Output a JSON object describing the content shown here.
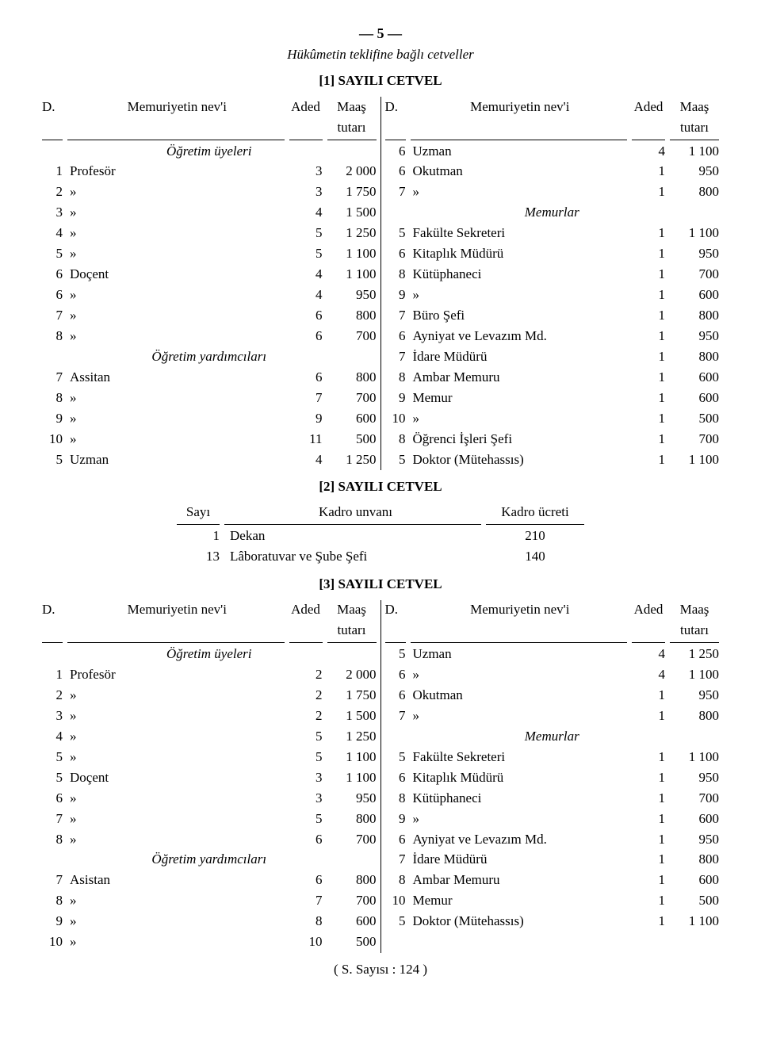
{
  "pageNumber": "— 5 —",
  "headerSubtitle": "Hükûmetin teklifine bağlı cetveller",
  "footer": "( S. Sayısı : 124 )",
  "headers": {
    "d": "D.",
    "nev": "Memuriyetin nev'i",
    "aded": "Aded",
    "maas": "Maaş",
    "tutari": "tutarı"
  },
  "c2headers": {
    "sayi": "Sayı",
    "unvan": "Kadro unvanı",
    "ucret": "Kadro ücreti"
  },
  "cetvel1": {
    "title": "[1] SAYILI CETVEL",
    "left": [
      {
        "section": "Öğretim üyeleri"
      },
      {
        "d": "1",
        "nev": "Profesör",
        "aded": "3",
        "maas": "2 000"
      },
      {
        "d": "2",
        "nev": "»",
        "aded": "3",
        "maas": "1 750"
      },
      {
        "d": "3",
        "nev": "»",
        "aded": "4",
        "maas": "1 500"
      },
      {
        "d": "4",
        "nev": "»",
        "aded": "5",
        "maas": "1 250"
      },
      {
        "d": "5",
        "nev": "»",
        "aded": "5",
        "maas": "1 100"
      },
      {
        "d": "6",
        "nev": "Doçent",
        "aded": "4",
        "maas": "1 100"
      },
      {
        "d": "6",
        "nev": "»",
        "aded": "4",
        "maas": "950"
      },
      {
        "d": "7",
        "nev": "»",
        "aded": "6",
        "maas": "800"
      },
      {
        "d": "8",
        "nev": "»",
        "aded": "6",
        "maas": "700"
      },
      {
        "section": "Öğretim yardımcıları"
      },
      {
        "d": "7",
        "nev": "Assitan",
        "aded": "6",
        "maas": "800"
      },
      {
        "d": "8",
        "nev": "»",
        "aded": "7",
        "maas": "700"
      },
      {
        "d": "9",
        "nev": "»",
        "aded": "9",
        "maas": "600"
      },
      {
        "d": "10",
        "nev": "»",
        "aded": "11",
        "maas": "500"
      },
      {
        "d": "5",
        "nev": "Uzman",
        "aded": "4",
        "maas": "1 250"
      }
    ],
    "right": [
      {
        "d": "6",
        "nev": "Uzman",
        "aded": "4",
        "maas": "1 100"
      },
      {
        "d": "6",
        "nev": "Okutman",
        "aded": "1",
        "maas": "950"
      },
      {
        "d": "7",
        "nev": "»",
        "aded": "1",
        "maas": "800"
      },
      {
        "section": "Memurlar"
      },
      {
        "d": "5",
        "nev": "Fakülte Sekreteri",
        "aded": "1",
        "maas": "1 100"
      },
      {
        "d": "6",
        "nev": "Kitaplık Müdürü",
        "aded": "1",
        "maas": "950"
      },
      {
        "d": "8",
        "nev": "Kütüphaneci",
        "aded": "1",
        "maas": "700"
      },
      {
        "d": "9",
        "nev": "»",
        "aded": "1",
        "maas": "600"
      },
      {
        "d": "7",
        "nev": "Büro Şefi",
        "aded": "1",
        "maas": "800"
      },
      {
        "d": "6",
        "nev": "Ayniyat ve Levazım Md.",
        "aded": "1",
        "maas": "950"
      },
      {
        "d": "7",
        "nev": "İdare Müdürü",
        "aded": "1",
        "maas": "800"
      },
      {
        "d": "8",
        "nev": "Ambar Memuru",
        "aded": "1",
        "maas": "600"
      },
      {
        "d": "9",
        "nev": "Memur",
        "aded": "1",
        "maas": "600"
      },
      {
        "d": "10",
        "nev": "»",
        "aded": "1",
        "maas": "500"
      },
      {
        "d": "8",
        "nev": "Öğrenci İşleri Şefi",
        "aded": "1",
        "maas": "700"
      },
      {
        "d": "5",
        "nev": "Doktor  (Mütehassıs)",
        "aded": "1",
        "maas": "1 100"
      }
    ]
  },
  "cetvel2": {
    "title": "[2] SAYILI CETVEL",
    "rows": [
      {
        "sayi": "1",
        "unvan": "Dekan",
        "ucret": "210"
      },
      {
        "sayi": "13",
        "unvan": "Lâboratuvar ve Şube Şefi",
        "ucret": "140"
      }
    ]
  },
  "cetvel3": {
    "title": "[3] SAYILI CETVEL",
    "left": [
      {
        "section": "Öğretim üyeleri"
      },
      {
        "d": "1",
        "nev": "Profesör",
        "aded": "2",
        "maas": "2 000"
      },
      {
        "d": "2",
        "nev": "»",
        "aded": "2",
        "maas": "1 750"
      },
      {
        "d": "3",
        "nev": "»",
        "aded": "2",
        "maas": "1 500"
      },
      {
        "d": "4",
        "nev": "»",
        "aded": "5",
        "maas": "1 250"
      },
      {
        "d": "5",
        "nev": "»",
        "aded": "5",
        "maas": "1 100"
      },
      {
        "d": "5",
        "nev": "Doçent",
        "aded": "3",
        "maas": "1 100"
      },
      {
        "d": "6",
        "nev": "»",
        "aded": "3",
        "maas": "950"
      },
      {
        "d": "7",
        "nev": "»",
        "aded": "5",
        "maas": "800"
      },
      {
        "d": "8",
        "nev": "»",
        "aded": "6",
        "maas": "700"
      },
      {
        "section": "Öğretim yardımcıları"
      },
      {
        "d": "7",
        "nev": "Asistan",
        "aded": "6",
        "maas": "800"
      },
      {
        "d": "8",
        "nev": "»",
        "aded": "7",
        "maas": "700"
      },
      {
        "d": "9",
        "nev": "»",
        "aded": "8",
        "maas": "600"
      },
      {
        "d": "10",
        "nev": "»",
        "aded": "10",
        "maas": "500"
      }
    ],
    "right": [
      {
        "d": "5",
        "nev": "Uzman",
        "aded": "4",
        "maas": "1 250"
      },
      {
        "d": "6",
        "nev": "»",
        "aded": "4",
        "maas": "1 100"
      },
      {
        "d": "6",
        "nev": "Okutman",
        "aded": "1",
        "maas": "950"
      },
      {
        "d": "7",
        "nev": "»",
        "aded": "1",
        "maas": "800"
      },
      {
        "section": "Memurlar"
      },
      {
        "d": "5",
        "nev": "Fakülte Sekreteri",
        "aded": "1",
        "maas": "1 100"
      },
      {
        "d": "6",
        "nev": "Kitaplık Müdürü",
        "aded": "1",
        "maas": "950"
      },
      {
        "d": "8",
        "nev": "Kütüphaneci",
        "aded": "1",
        "maas": "700"
      },
      {
        "d": "9",
        "nev": "»",
        "aded": "1",
        "maas": "600"
      },
      {
        "d": "6",
        "nev": "Ayniyat ve Levazım Md.",
        "aded": "1",
        "maas": "950"
      },
      {
        "d": "7",
        "nev": "İdare Müdürü",
        "aded": "1",
        "maas": "800"
      },
      {
        "d": "8",
        "nev": "Ambar Memuru",
        "aded": "1",
        "maas": "600"
      },
      {
        "d": "10",
        "nev": "Memur",
        "aded": "1",
        "maas": "500"
      },
      {
        "d": "5",
        "nev": "Doktor  (Mütehassıs)",
        "aded": "1",
        "maas": "1 100"
      }
    ]
  }
}
